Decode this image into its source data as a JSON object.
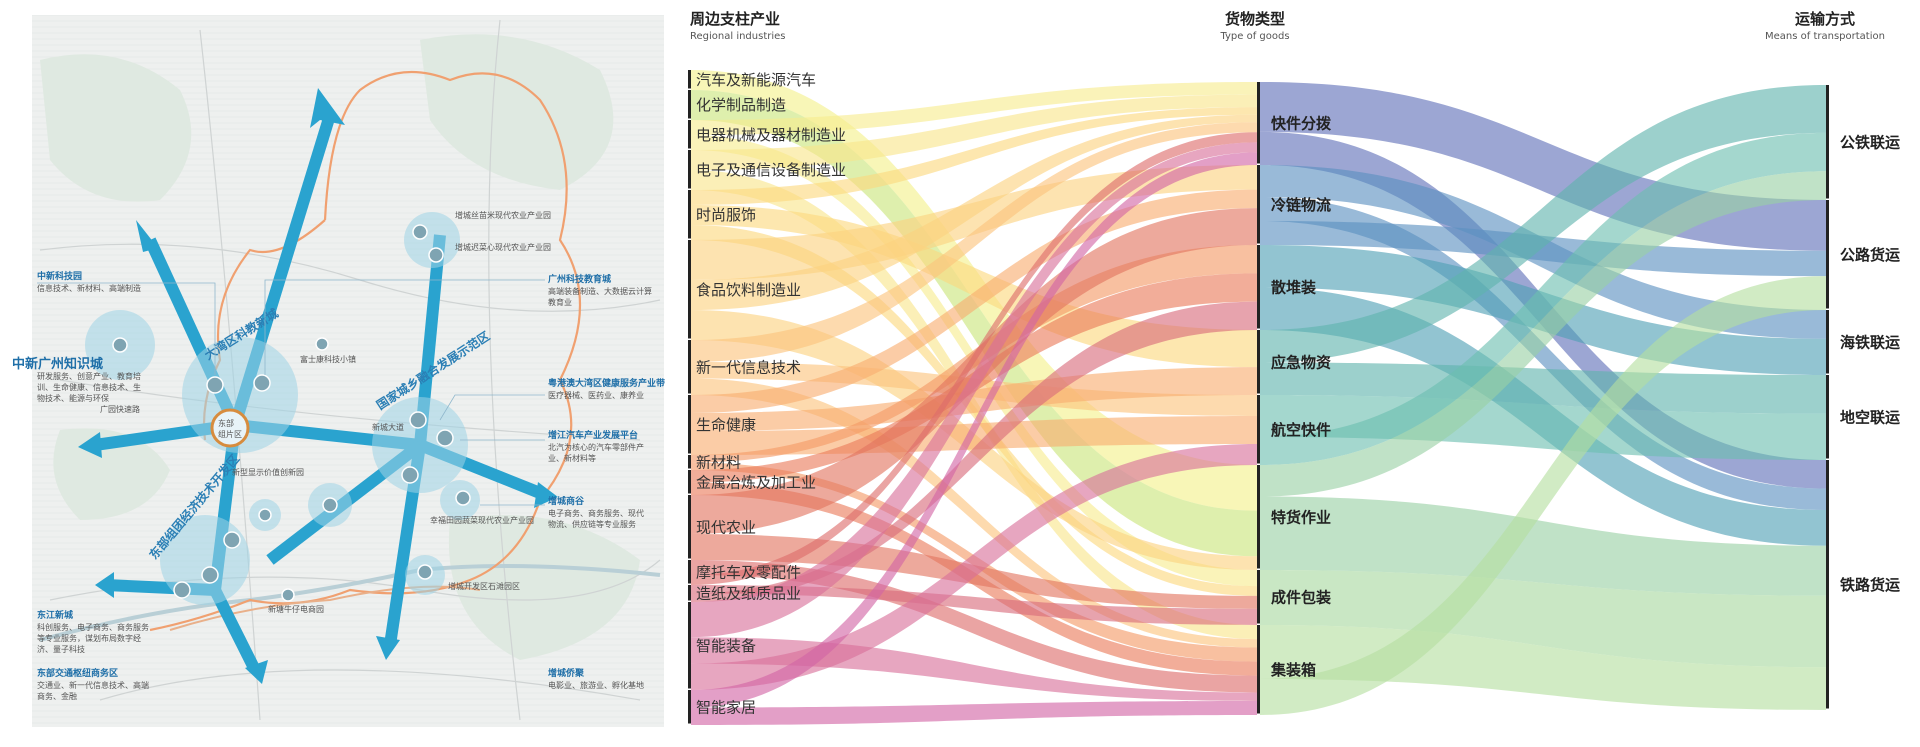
{
  "headers": {
    "industries_cn": "周边支柱产业",
    "industries_en": "Regional industries",
    "goods_cn": "货物类型",
    "goods_en": "Type of goods",
    "transport_cn": "运输方式",
    "transport_en": "Means of transportation"
  },
  "map": {
    "zones": {
      "knowledge_city": "中新广州知识城",
      "bay_area": "大湾区科教新城",
      "rural": "国家城乡融合发展示范区",
      "east_zone": "东部组团经济技术开发区",
      "east_hub": "东部",
      "east_hub2": "组片区"
    },
    "callouts": [
      {
        "title": "中新科技园",
        "text": [
          "信息技术、新材料、高端制造"
        ]
      },
      {
        "title": "中新广州知识城",
        "text": [
          "研发服务、创意产业、教育培",
          "训、生命健康、信息技术、生",
          "物技术、能源与环保"
        ]
      },
      {
        "title": "广州科技教育城",
        "text": [
          "高端装备制造、大数据云计算",
          "教育业"
        ]
      },
      {
        "title": "粤港澳大湾区健康服务产业带",
        "text": [
          "医疗器械、医药业、康养业"
        ]
      },
      {
        "title": "增江汽车产业发展平台",
        "text": [
          "北汽为核心的汽车零部件产",
          "业、新材料等"
        ]
      },
      {
        "title": "增城商谷",
        "text": [
          "电子商务、商务服务、现代",
          "物流、供应链等专业服务"
        ]
      },
      {
        "title": "东江新城",
        "text": [
          "科创服务、电子商务、商务服务",
          "等专业服务，谋划布局数字经",
          "济、量子科技"
        ]
      },
      {
        "title": "东部交通枢纽商务区",
        "text": [
          "交通业、新一代信息技术、高端",
          "商务、金融"
        ]
      },
      {
        "title": "增城侨聚",
        "text": [
          "电影业、旅游业、孵化基地"
        ]
      }
    ],
    "small_labels": [
      "增城丝苗米现代农业产业园",
      "增城迟菜心现代农业产业园",
      "富士康科技小镇",
      "新型显示价值创新园",
      "幸福田园蔬菜现代农业产业园",
      "增城开发区石滩园区",
      "新塘牛仔电商园",
      "新城大道",
      "广园快速路"
    ]
  },
  "industries": [
    {
      "label": "汽车及新能源汽车",
      "color": "#f4f08a"
    },
    {
      "label": "化学制品制造",
      "color": "#c9e57a"
    },
    {
      "label": "电器机械及器材制造业",
      "color": "#f7ec8e"
    },
    {
      "label": "电子及通信设备制造业",
      "color": "#f9e58a"
    },
    {
      "label": "时尚服饰",
      "color": "#fbd97e"
    },
    {
      "label": "食品饮料制造业",
      "color": "#fcd27f"
    },
    {
      "label": "新一代信息技术",
      "color": "#fbc37c"
    },
    {
      "label": "生命健康",
      "color": "#f8ad70"
    },
    {
      "label": "新材料",
      "color": "#f49a66"
    },
    {
      "label": "金属冶炼及加工业",
      "color": "#ea7b5a"
    },
    {
      "label": "现代农业",
      "color": "#e27560"
    },
    {
      "label": "摩托车及零配件",
      "color": "#dd6c6a"
    },
    {
      "label": "造纸及纸质品业",
      "color": "#d86a7a"
    },
    {
      "label": "智能装备",
      "color": "#d8709a"
    },
    {
      "label": "智能家居",
      "color": "#d264a4"
    }
  ],
  "goods": [
    {
      "label": "快件分拨",
      "color": "#5f6fb8"
    },
    {
      "label": "冷链物流",
      "color": "#5b8fc0"
    },
    {
      "label": "散堆装",
      "color": "#4f9fb5"
    },
    {
      "label": "应急物资",
      "color": "#5fb3ad"
    },
    {
      "label": "航空快件",
      "color": "#6cbfb0"
    },
    {
      "label": "特货作业",
      "color": "#9ad1a4"
    },
    {
      "label": "成件包装",
      "color": "#a8d8a0"
    },
    {
      "label": "集装箱",
      "color": "#b4dea0"
    }
  ],
  "transport": [
    {
      "label": "公铁联运",
      "color": "#72c2b4"
    },
    {
      "label": "公路货运",
      "color": "#5f6fb8"
    },
    {
      "label": "海铁联运",
      "color": "#6db0c0"
    },
    {
      "label": "地空联运",
      "color": "#80c9b8"
    },
    {
      "label": "铁路货运",
      "color": "#a6d9a0"
    }
  ]
}
